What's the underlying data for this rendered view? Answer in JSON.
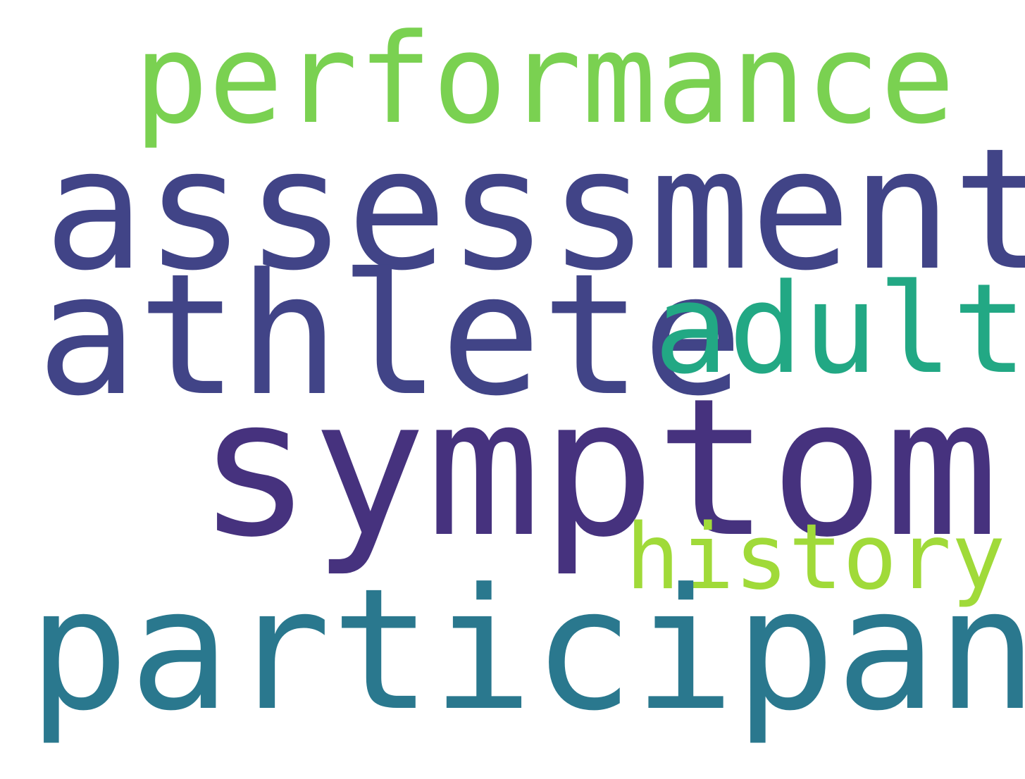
{
  "words": [
    {
      "text": "performance",
      "color": "#7ad151"
    },
    {
      "text": "assessment",
      "color": "#414487"
    },
    {
      "text": "athlete",
      "color": "#414487"
    },
    {
      "text": "adult",
      "color": "#22a884"
    },
    {
      "text": "symptom",
      "color": "#46327e"
    },
    {
      "text": "history",
      "color": "#a0da39"
    },
    {
      "text": "participant",
      "color": "#2a788e"
    }
  ]
}
